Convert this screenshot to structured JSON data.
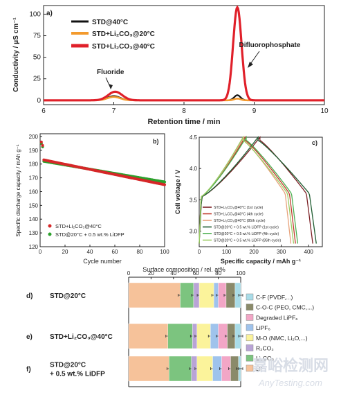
{
  "watermark": {
    "text": "嘉峪检测网",
    "url": "AnyTesting.com"
  },
  "chart_data": [
    {
      "panel": "a)",
      "type": "line",
      "xlabel": "Retention time / min",
      "ylabel": "Conductivity / μS cm⁻¹",
      "xlim": [
        6,
        10
      ],
      "ylim": [
        -5,
        110
      ],
      "xticks": [
        6,
        7,
        8,
        9,
        10
      ],
      "yticks": [
        0,
        25,
        50,
        75,
        100
      ],
      "legend_position": "top-left",
      "annotations": [
        {
          "text": "Fluoride",
          "x": 7.0,
          "y": 9
        },
        {
          "text": "Difluorophosphate",
          "x": 8.75,
          "y": 109
        }
      ],
      "series": [
        {
          "name": "STD@40°C",
          "color": "#111111",
          "peaks": [
            {
              "center": 7.0,
              "height": 5,
              "width": 0.09
            },
            {
              "center": 8.76,
              "height": 6,
              "width": 0.045
            }
          ]
        },
        {
          "name": "STD+Li₂CO₃@20°C",
          "color": "#f39a2d",
          "peaks": [
            {
              "center": 7.0,
              "height": 4,
              "width": 0.09
            },
            {
              "center": 8.76,
              "height": 2,
              "width": 0.045
            }
          ]
        },
        {
          "name": "STD+Li₂CO₃@40°C",
          "color": "#e0202a",
          "peaks": [
            {
              "center": 7.02,
              "height": 10,
              "width": 0.1
            },
            {
              "center": 8.76,
              "height": 108,
              "width": 0.06
            }
          ]
        }
      ]
    },
    {
      "panel": "b)",
      "type": "scatter",
      "xlabel": "Cycle number",
      "ylabel": "Specific discharge capacity / mAh g⁻¹",
      "xlim": [
        0,
        100
      ],
      "ylim": [
        120,
        202
      ],
      "xticks": [
        0,
        20,
        40,
        60,
        80,
        100
      ],
      "yticks": [
        120,
        130,
        140,
        150,
        160,
        170,
        180,
        190,
        200
      ],
      "legend_position": "bottom-left",
      "series": [
        {
          "name": "STD+Li₂CO₃@40°C",
          "color": "#d62728",
          "start": 196,
          "first": 183,
          "end": 165
        },
        {
          "name": "STD@20°C + 0.5 wt.% LiDFP",
          "color": "#2ca02c",
          "start": 195,
          "first": 182,
          "end": 167
        }
      ]
    },
    {
      "panel": "c)",
      "type": "line",
      "xlabel": "Specific capacity / mAh g⁻¹",
      "ylabel": "Cell voltage / V",
      "xlim": [
        0,
        450
      ],
      "ylim": [
        2.75,
        4.5
      ],
      "xticks": [
        0,
        100,
        200,
        300,
        400
      ],
      "yticks": [
        3.0,
        3.5,
        4.0,
        4.5
      ],
      "legend_position": "bottom-left",
      "series": [
        {
          "name": "STD+Li₂CO₃@40°C (1st cycle)",
          "color": "#7b1f24",
          "charge_end": 222,
          "discharge_end": 415
        },
        {
          "name": "STD+Li₂CO₃@40°C (4th cycle)",
          "color": "#c0392b",
          "charge_end": 168,
          "discharge_end": 352
        },
        {
          "name": "STD+Li₂CO₃@40°C (85th cycle)",
          "color": "#e8a27a",
          "charge_end": 163,
          "discharge_end": 335
        },
        {
          "name": "STD@20°C + 0.5 wt.% LiDFP (1st cycle)",
          "color": "#1e5c30",
          "charge_end": 215,
          "discharge_end": 428
        },
        {
          "name": "STD@20°C + 0.5 wt.% LiDFP (4th cycle)",
          "color": "#4caf50",
          "charge_end": 172,
          "discharge_end": 360
        },
        {
          "name": "STD@20°C + 0.5 wt.% LiDFP (85th cycle)",
          "color": "#9ccc65",
          "charge_end": 160,
          "discharge_end": 345
        }
      ]
    },
    {
      "panel": "d-f",
      "type": "bar",
      "stacked": true,
      "orientation": "horizontal",
      "xlabel": "Surface composition / rel. at%",
      "xlim": [
        0,
        100
      ],
      "xticks": [
        0,
        20,
        40,
        60,
        80,
        100
      ],
      "legend_position": "right",
      "categories": [
        {
          "panel": "d)",
          "label": [
            "STD@20°C"
          ]
        },
        {
          "panel": "e)",
          "label": [
            "STD+Li₂CO₃@40°C"
          ]
        },
        {
          "panel": "f)",
          "label": [
            "STD@20°C",
            "+ 0.5 wt.% LiDFP"
          ]
        }
      ],
      "series": [
        {
          "name": "LiF",
          "color": "#f6c29a",
          "values": [
            46,
            35,
            36
          ]
        },
        {
          "name": "Li₂CO₃",
          "color": "#7cc47f",
          "values": [
            12,
            22,
            20
          ]
        },
        {
          "name": "R₂CO₃",
          "color": "#b9a4d6",
          "values": [
            5,
            4,
            5
          ]
        },
        {
          "name": "M-O (NMC, Li₂O,...)",
          "color": "#fbf39b",
          "values": [
            13,
            12,
            14
          ]
        },
        {
          "name": "LiPF₆",
          "color": "#9fc3ec",
          "values": [
            4,
            7,
            8
          ]
        },
        {
          "name": "Degraded LiPF₆",
          "color": "#f2a6c6",
          "values": [
            7,
            8,
            8
          ]
        },
        {
          "name": "C-O-C (PEO, CMC,...)",
          "color": "#8a8a6a",
          "values": [
            8,
            7,
            7
          ]
        },
        {
          "name": "C-F (PVDF,...)",
          "color": "#a9dce8",
          "values": [
            5,
            5,
            2
          ]
        }
      ]
    }
  ]
}
